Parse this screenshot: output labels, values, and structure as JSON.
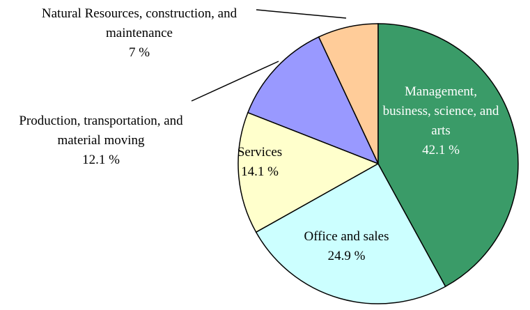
{
  "chart_data": {
    "type": "pie",
    "categories": [
      "Management, business, science, and arts",
      "Office and sales",
      "Services",
      "Production, transportation, and material moving",
      "Natural Resources, construction, and maintenance"
    ],
    "values": [
      42.1,
      24.9,
      14.1,
      12.1,
      7
    ],
    "value_labels": [
      "42.1 %",
      "24.9 %",
      "14.1 %",
      "12.1 %",
      "7 %"
    ],
    "colors": [
      "#3a9b68",
      "#ccffff",
      "#ffffcc",
      "#9999ff",
      "#ffcc99"
    ]
  }
}
